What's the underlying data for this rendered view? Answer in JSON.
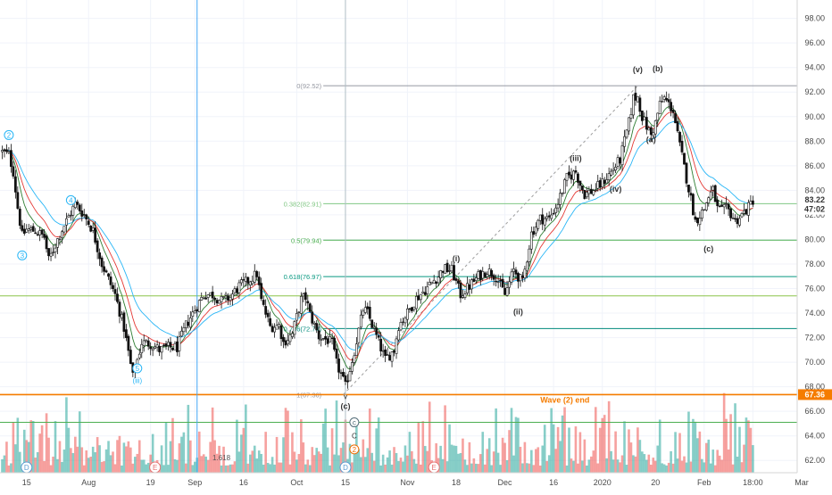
{
  "chart_data": {
    "type": "candlestick",
    "y_range": [
      61.0,
      99.5
    ],
    "x_range": [
      0,
      180
    ],
    "price_axis": {
      "ticks": [
        62,
        64,
        66,
        68,
        70,
        72,
        74,
        76,
        78,
        80,
        82,
        84,
        86,
        88,
        90,
        92,
        94,
        96,
        98
      ],
      "tick_labels": [
        "62.00",
        "64.00",
        "66.00",
        "68.00",
        "70.00",
        "72.00",
        "74.00",
        "76.00",
        "78.00",
        "80.00",
        "82.00",
        "84.00",
        "86.00",
        "88.00",
        "90.00",
        "92.00",
        "94.00",
        "96.00",
        "98.00"
      ],
      "last_price_label": "83.22",
      "countdown_label": "47:02",
      "wave_end_label": "67.36"
    },
    "time_axis": [
      {
        "label": "15",
        "x": 6
      },
      {
        "label": "Aug",
        "x": 20
      },
      {
        "label": "19",
        "x": 34
      },
      {
        "label": "Sep",
        "x": 44
      },
      {
        "label": "16",
        "x": 55
      },
      {
        "label": "Oct",
        "x": 67
      },
      {
        "label": "15",
        "x": 78
      },
      {
        "label": "Nov",
        "x": 92
      },
      {
        "label": "18",
        "x": 103
      },
      {
        "label": "Dec",
        "x": 114
      },
      {
        "label": "16",
        "x": 125
      },
      {
        "label": "2020",
        "x": 136
      },
      {
        "label": "20",
        "x": 148
      },
      {
        "label": "Feb",
        "x": 159
      },
      {
        "label": "18:00",
        "x": 170
      },
      {
        "label": "Mar",
        "x": 181
      }
    ],
    "price_path": [
      [
        0,
        87.2
      ],
      [
        2,
        86.9
      ],
      [
        3,
        85.5
      ],
      [
        4,
        82.6
      ],
      [
        5,
        80.3
      ],
      [
        6,
        80.8
      ],
      [
        8,
        80.7
      ],
      [
        10,
        80.2
      ],
      [
        11,
        78.3
      ],
      [
        13,
        80.0
      ],
      [
        14,
        80.8
      ],
      [
        16,
        82.2
      ],
      [
        17,
        82.9
      ],
      [
        19,
        82.0
      ],
      [
        21,
        80.7
      ],
      [
        23,
        78.0
      ],
      [
        26,
        75.5
      ],
      [
        28,
        72.8
      ],
      [
        30,
        68.8
      ],
      [
        32,
        71.6
      ],
      [
        34,
        71.5
      ],
      [
        36,
        71.0
      ],
      [
        38,
        71.2
      ],
      [
        40,
        71.2
      ],
      [
        42,
        73.0
      ],
      [
        44,
        74.3
      ],
      [
        46,
        75.5
      ],
      [
        48,
        75.5
      ],
      [
        50,
        75.0
      ],
      [
        52,
        75.3
      ],
      [
        54,
        76.2
      ],
      [
        56,
        76.6
      ],
      [
        58,
        77.2
      ],
      [
        59,
        75.0
      ],
      [
        61,
        72.9
      ],
      [
        63,
        73.0
      ],
      [
        64,
        71.6
      ],
      [
        66,
        72.3
      ],
      [
        68,
        75.1
      ],
      [
        69,
        75.3
      ],
      [
        70,
        73.9
      ],
      [
        72,
        72.1
      ],
      [
        74,
        71.8
      ],
      [
        75,
        71.5
      ],
      [
        76,
        69.9
      ],
      [
        77,
        69.0
      ],
      [
        78,
        68.0
      ],
      [
        80,
        70.9
      ],
      [
        82,
        74.3
      ],
      [
        83,
        74.0
      ],
      [
        85,
        72.1
      ],
      [
        87,
        70.2
      ],
      [
        89,
        71.0
      ],
      [
        90,
        73.0
      ],
      [
        92,
        74.0
      ],
      [
        94,
        75.2
      ],
      [
        96,
        75.9
      ],
      [
        98,
        76.7
      ],
      [
        99,
        77.0
      ],
      [
        100,
        77.6
      ],
      [
        102,
        77.5
      ],
      [
        104,
        75.5
      ],
      [
        106,
        76.2
      ],
      [
        108,
        77.0
      ],
      [
        110,
        77.5
      ],
      [
        112,
        77.0
      ],
      [
        114,
        75.5
      ],
      [
        116,
        77.5
      ],
      [
        118,
        76.5
      ],
      [
        120,
        80.5
      ],
      [
        122,
        81.7
      ],
      [
        124,
        81.7
      ],
      [
        126,
        83.0
      ],
      [
        128,
        85.0
      ],
      [
        130,
        85.5
      ],
      [
        131,
        84.5
      ],
      [
        132,
        83.7
      ],
      [
        134,
        84.0
      ],
      [
        136,
        84.6
      ],
      [
        138,
        85.5
      ],
      [
        140,
        86.5
      ],
      [
        142,
        89.5
      ],
      [
        143,
        91.5
      ],
      [
        144,
        91.6
      ],
      [
        145,
        90.0
      ],
      [
        146,
        89.2
      ],
      [
        147,
        88.5
      ],
      [
        148,
        89.5
      ],
      [
        149,
        91.0
      ],
      [
        150,
        91.5
      ],
      [
        151,
        91.0
      ],
      [
        152,
        90.5
      ],
      [
        153,
        88.5
      ],
      [
        155,
        85.0
      ],
      [
        156,
        83.3
      ],
      [
        157,
        81.5
      ],
      [
        158,
        82.0
      ],
      [
        159,
        82.5
      ],
      [
        160,
        83.5
      ],
      [
        161,
        84.0
      ],
      [
        162,
        82.5
      ],
      [
        163,
        82.3
      ],
      [
        164,
        82.5
      ],
      [
        165,
        82.1
      ],
      [
        166,
        81.5
      ],
      [
        167,
        81.8
      ],
      [
        168,
        82.2
      ],
      [
        169,
        82.6
      ],
      [
        170,
        83.2
      ]
    ],
    "volume_bars_seed": 173,
    "horizontal_lines": [
      {
        "name": "fib-0",
        "price": 92.52,
        "label": "0(92.52)",
        "color": "#9598a1"
      },
      {
        "name": "fib-0382",
        "price": 82.91,
        "label": "0.382(82.91)",
        "color": "#81c784"
      },
      {
        "name": "fib-05",
        "price": 79.94,
        "label": "0.5(79.94)",
        "color": "#4caf50"
      },
      {
        "name": "fib-0618",
        "price": 76.97,
        "label": "0.618(76.97)",
        "color": "#089981"
      },
      {
        "name": "fib-0786",
        "price": 72.74,
        "label": "0.786(72.74)",
        "color": "#00897b"
      },
      {
        "name": "fib-1",
        "price": 67.36,
        "label": "1(67.36)",
        "color": "#9598a1"
      },
      {
        "name": "wave-2-end",
        "price": 67.36,
        "label": "Wave (2) end",
        "color": "#f57c00"
      },
      {
        "name": "support-75",
        "price": 75.4,
        "label": "",
        "color": "#8bc34a"
      },
      {
        "name": "support-65",
        "price": 65.1,
        "label": "",
        "color": "#4caf50"
      }
    ],
    "vertical_lines": [
      {
        "x": 44.5,
        "color": "#42a5f5"
      },
      {
        "x": 78,
        "color": "#b0bec5"
      }
    ],
    "wave_labels": [
      {
        "text": "(v)",
        "x": 144,
        "y": 93.6
      },
      {
        "text": "(b)",
        "x": 148.5,
        "y": 93.7
      },
      {
        "text": "(a)",
        "x": 147,
        "y": 87.9
      },
      {
        "text": "(iii)",
        "x": 130,
        "y": 86.4
      },
      {
        "text": "(iv)",
        "x": 139,
        "y": 83.9
      },
      {
        "text": "(i)",
        "x": 103,
        "y": 78.2
      },
      {
        "text": "(ii)",
        "x": 117,
        "y": 73.9
      },
      {
        "text": "(c)",
        "x": 160,
        "y": 79.0
      },
      {
        "text": "(c)",
        "x": 78,
        "y": 66.2
      }
    ],
    "circle_labels": [
      {
        "text": "2",
        "x": 2,
        "y": 88.5,
        "color": "#29b6f6"
      },
      {
        "text": "3",
        "x": 5,
        "y": 78.7,
        "color": "#29b6f6"
      },
      {
        "text": "4",
        "x": 16,
        "y": 83.2,
        "color": "#29b6f6"
      },
      {
        "text": "5",
        "x": 31,
        "y": 69.5,
        "color": "#29b6f6"
      },
      {
        "text": "c",
        "x": 80,
        "y": 65.1,
        "color": "#546e7a"
      },
      {
        "text": "2",
        "x": 80,
        "y": 62.9,
        "color": "#ef6c00"
      }
    ],
    "bottom_markers": [
      {
        "text": "D",
        "x": 6,
        "color": "#5c9bd1"
      },
      {
        "text": "E",
        "x": 35,
        "color": "#e57373"
      },
      {
        "text": "D",
        "x": 78,
        "color": "#5c9bd1"
      },
      {
        "text": "E",
        "x": 98,
        "color": "#e57373"
      }
    ],
    "extra_texts": [
      {
        "text": "1.618",
        "x": 50,
        "y": 62.0,
        "color": "#555"
      },
      {
        "text": "(iii)",
        "x": 31,
        "y": 68.3,
        "color": "#29b6f6"
      },
      {
        "text": "C",
        "x": 80,
        "y": 63.8,
        "color": "#333"
      },
      {
        "text": "v",
        "x": 78,
        "y": 67.0,
        "color": "#333"
      }
    ]
  }
}
